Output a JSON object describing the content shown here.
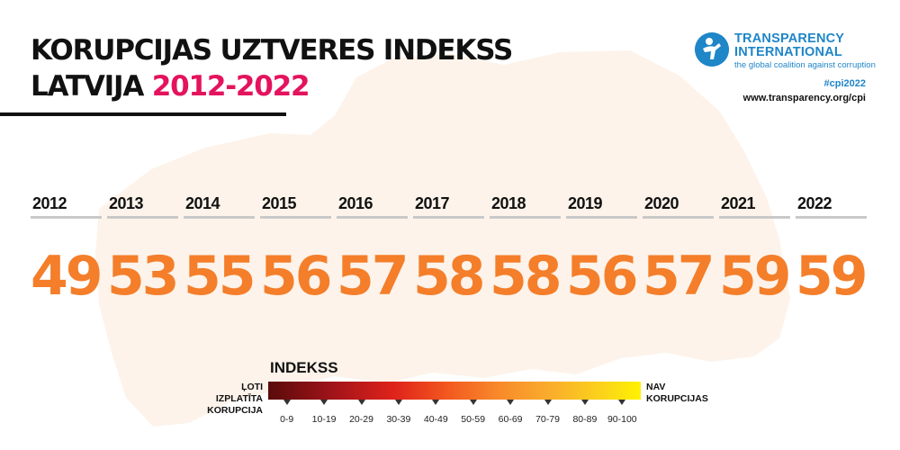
{
  "header": {
    "title_line1": "KORUPCIJAS UZTVERES INDEKSS",
    "title_line2_prefix": "LATVIJA",
    "title_line2_accent": "2012-2022"
  },
  "brand": {
    "name": "TRANSPARENCY\nINTERNATIONAL",
    "tagline": "the global coalition against corruption",
    "hashtag": "#cpi2022",
    "website": "www.transparency.org/cpi"
  },
  "colors": {
    "accent": "#e4135d",
    "score": "#f47e2a",
    "brand_blue": "#1f86c8"
  },
  "chart_data": {
    "type": "table",
    "title": "KORUPCIJAS UZTVERES INDEKSS LATVIJA 2012-2022",
    "categories": [
      "2012",
      "2013",
      "2014",
      "2015",
      "2016",
      "2017",
      "2018",
      "2019",
      "2020",
      "2021",
      "2022"
    ],
    "values": [
      49,
      53,
      55,
      56,
      57,
      58,
      58,
      56,
      57,
      59,
      59
    ]
  },
  "legend": {
    "title": "INDEKSS",
    "left_label": "ĻOTI IZPLATĪTA\nKORUPCIJA",
    "right_label": "NAV\nKORUPCIJAS",
    "ranges": [
      "0-9",
      "10-19",
      "20-29",
      "30-39",
      "40-49",
      "50-59",
      "60-69",
      "70-79",
      "80-89",
      "90-100"
    ]
  }
}
